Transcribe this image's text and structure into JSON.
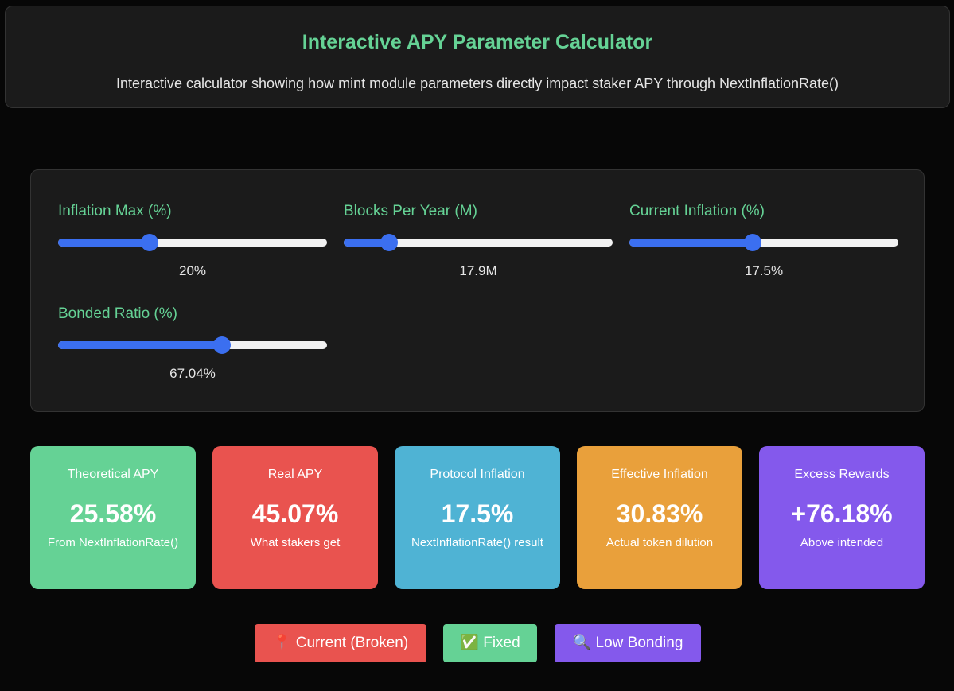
{
  "header": {
    "title": "Interactive APY Parameter Calculator",
    "subtitle": "Interactive calculator showing how mint module parameters directly impact staker APY through NextInflationRate()"
  },
  "controls": [
    {
      "label": "Inflation Max (%)",
      "value": "20%",
      "position": 0.34
    },
    {
      "label": "Blocks Per Year (M)",
      "value": "17.9M",
      "position": 0.17
    },
    {
      "label": "Current Inflation (%)",
      "value": "17.5%",
      "position": 0.46
    },
    {
      "label": "Bonded Ratio (%)",
      "value": "67.04%",
      "position": 0.61
    }
  ],
  "metrics": [
    {
      "label": "Theoretical APY",
      "value": "25.58%",
      "desc": "From NextInflationRate()",
      "color": "#65d295"
    },
    {
      "label": "Real APY",
      "value": "45.07%",
      "desc": "What stakers get",
      "color": "#e9534f"
    },
    {
      "label": "Protocol Inflation",
      "value": "17.5%",
      "desc": "NextInflationRate() result",
      "color": "#4fb3d4"
    },
    {
      "label": "Effective Inflation",
      "value": "30.83%",
      "desc": "Actual token dilution",
      "color": "#e9a03b"
    },
    {
      "label": "Excess Rewards",
      "value": "+76.18%",
      "desc": "Above intended",
      "color": "#8459ec"
    }
  ],
  "presets": [
    {
      "label": "📍 Current (Broken)",
      "color": "#e9534f"
    },
    {
      "label": "✅ Fixed",
      "color": "#65d295"
    },
    {
      "label": "🔍 Low Bonding",
      "color": "#8459ec"
    }
  ]
}
